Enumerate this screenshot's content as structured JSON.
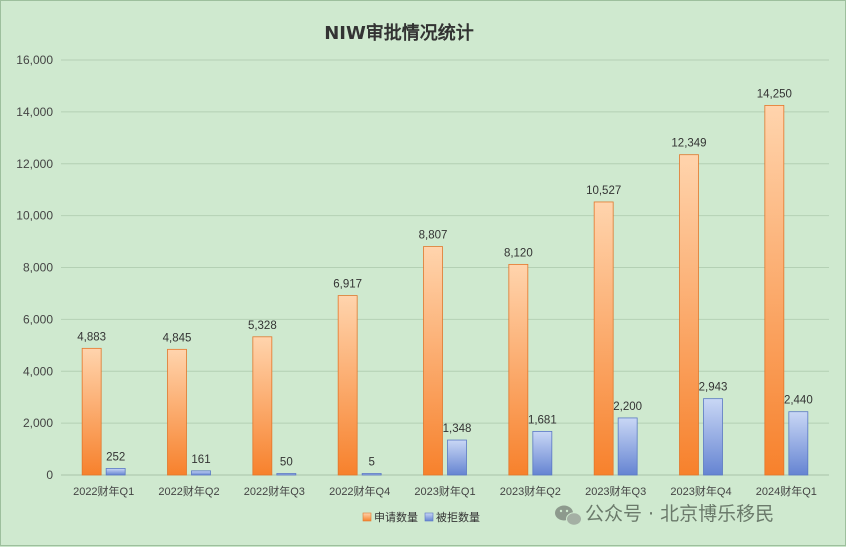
{
  "chart_data": {
    "type": "bar",
    "title": "NIW审批情况统计",
    "categories": [
      "2022财年Q1",
      "2022财年Q2",
      "2022财年Q3",
      "2022财年Q4",
      "2023财年Q1",
      "2023财年Q2",
      "2023财年Q3",
      "2023财年Q4",
      "2024财年Q1"
    ],
    "series": [
      {
        "name": "申请数量",
        "values": [
          4883,
          4845,
          5328,
          6917,
          8807,
          8120,
          10527,
          12349,
          14250
        ],
        "labels": [
          "4,883",
          "4,845",
          "5,328",
          "6,917",
          "8,807",
          "8,120",
          "10,527",
          "12,349",
          "14,250"
        ],
        "color": "#f08a3a"
      },
      {
        "name": "被拒数量",
        "values": [
          252,
          161,
          50,
          5,
          1348,
          1681,
          2200,
          2943,
          2440
        ],
        "labels": [
          "252",
          "161",
          "50",
          "5",
          "1,348",
          "1,681",
          "2,200",
          "2,943",
          "2,440"
        ],
        "color": "#6f8fd6"
      }
    ],
    "ylim": [
      0,
      16000
    ],
    "yticks": [
      "0",
      "2,000",
      "4,000",
      "6,000",
      "8,000",
      "10,000",
      "12,000",
      "14,000",
      "16,000"
    ],
    "grid": true,
    "legend": "bottom-center"
  },
  "watermark": {
    "text": "公众号 · 北京博乐移民",
    "icon": "wechat-icon"
  }
}
